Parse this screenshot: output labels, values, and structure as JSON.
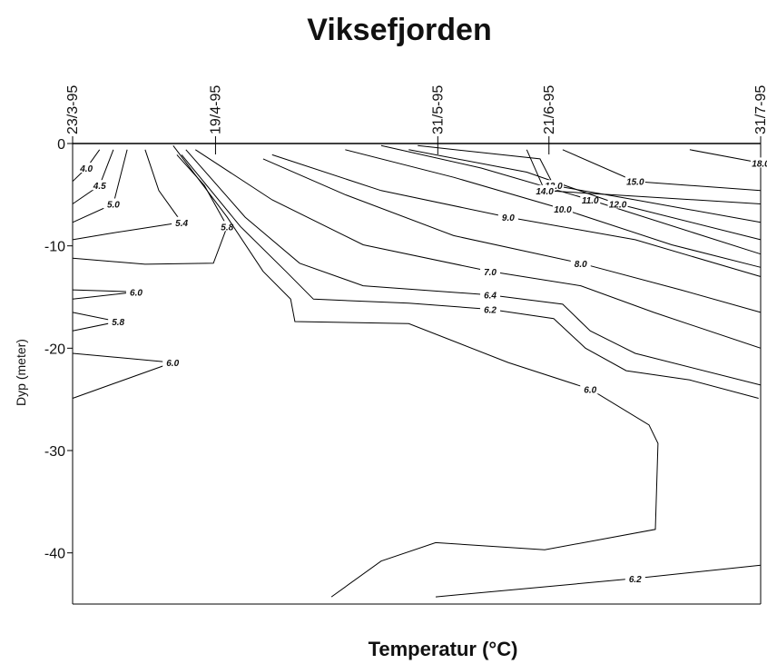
{
  "chart_data": {
    "type": "contour",
    "title": "Viksefjorden",
    "xlabel": "Temperatur (°C)",
    "ylabel": "Dyp (meter)",
    "xlim": [
      82,
      212
    ],
    "xticks": [
      {
        "value": 82,
        "label": "23/3-95"
      },
      {
        "value": 109,
        "label": "19/4-95"
      },
      {
        "value": 151,
        "label": "31/5-95"
      },
      {
        "value": 172,
        "label": "21/6-95"
      },
      {
        "value": 212,
        "label": "31/7-95"
      }
    ],
    "ylim": [
      -45,
      0
    ],
    "yticks": [
      0,
      -10,
      -20,
      -30,
      -40
    ],
    "color": "#000000",
    "contours": [
      {
        "level": 4,
        "label": "4.0",
        "x": [
          87.1,
          84.6,
          82
        ],
        "y": [
          -0.6,
          -2.4,
          -3.7
        ]
      },
      {
        "level": 4.5,
        "label": "4.5",
        "x": [
          89.7,
          87.1,
          82
        ],
        "y": [
          -0.6,
          -4.1,
          -5.9
        ]
      },
      {
        "level": 5,
        "label": "5.0",
        "x": [
          92.3,
          89.7,
          82
        ],
        "y": [
          -0.6,
          -5.9,
          -7.7
        ]
      },
      {
        "level": 5.4,
        "label": "5.4",
        "x": [
          95.7,
          98.3,
          102.6,
          88.9,
          82
        ],
        "y": [
          -0.6,
          -4.6,
          -7.7,
          -8.8,
          -9.4
        ]
      },
      {
        "level": 5.8,
        "label": "5.8",
        "x": [
          82,
          95.7,
          108.6,
          111.2,
          106.9,
          101.7
        ],
        "y": [
          -11.2,
          -11.8,
          -11.7,
          -8.1,
          -4.1,
          -1.1
        ]
      },
      {
        "level": 6,
        "label": "6.0",
        "x": [
          82,
          94,
          82
        ],
        "y": [
          -14.3,
          -14.5,
          -15.2
        ]
      },
      {
        "level": 5.8,
        "label": "5.8",
        "x": [
          82,
          90.6,
          82
        ],
        "y": [
          -16.5,
          -17.4,
          -18.3
        ]
      },
      {
        "level": 6,
        "label": "6.0",
        "x": [
          82,
          100.9,
          82
        ],
        "y": [
          -24.9,
          -21.4,
          -20.5
        ]
      },
      {
        "level": 6,
        "label": "6.0",
        "x": [
          101,
          111.2,
          118,
          123.2,
          124,
          145.5,
          164.3,
          179.8,
          190.9,
          192.6,
          192.1,
          171.2,
          150.6,
          140.3,
          130.9
        ],
        "y": [
          -0.2,
          -7.2,
          -12.5,
          -15.2,
          -17.4,
          -17.6,
          -21.4,
          -24,
          -27.5,
          -29.3,
          -37.7,
          -39.7,
          -39,
          -40.8,
          -44.3
        ]
      },
      {
        "level": 6.2,
        "label": "6.2",
        "x": [
          102.6,
          113.7,
          122.3,
          127.5,
          145.5,
          160.9,
          172.9,
          178.9,
          186.6,
          198.6,
          211.6
        ],
        "y": [
          -1.1,
          -8.1,
          -12.5,
          -15.2,
          -15.6,
          -16.2,
          -17.1,
          -20,
          -22.2,
          -23.1,
          -24.9
        ]
      },
      {
        "level": 6.4,
        "label": "6.4",
        "x": [
          103.4,
          114.6,
          124.9,
          136.9,
          160.9,
          174.6,
          179.8,
          188.3,
          212
        ],
        "y": [
          -0.6,
          -7.2,
          -11.7,
          -13.9,
          -14.8,
          -15.7,
          -18.3,
          -20.5,
          -23.6
        ]
      },
      {
        "level": 7,
        "label": "7.0",
        "x": [
          105.2,
          119.7,
          136.9,
          160.9,
          178,
          191.8,
          212
        ],
        "y": [
          -0.6,
          -5.5,
          -9.9,
          -12.5,
          -13.9,
          -16.5,
          -20
        ]
      },
      {
        "level": 8,
        "label": "8.0",
        "x": [
          118,
          133.5,
          154,
          178,
          196.9,
          212
        ],
        "y": [
          -1.5,
          -5,
          -9,
          -11.7,
          -14.3,
          -16.5
        ]
      },
      {
        "level": 9,
        "label": "9.0",
        "x": [
          119.7,
          140.3,
          164.3,
          188.3,
          212
        ],
        "y": [
          -1.1,
          -4.6,
          -7.2,
          -9.4,
          -13
        ]
      },
      {
        "level": 10,
        "label": "10.0",
        "x": [
          133.5,
          154,
          174.6,
          195.2,
          212
        ],
        "y": [
          -0.6,
          -3.3,
          -6.4,
          -9.9,
          -12.1
        ]
      },
      {
        "level": 11,
        "label": "11.0",
        "x": [
          140.3,
          159.2,
          179.8,
          212
        ],
        "y": [
          -0.2,
          -2.4,
          -5.5,
          -10.8
        ]
      },
      {
        "level": 12,
        "label": "12.0",
        "x": [
          145.5,
          167.8,
          185,
          212
        ],
        "y": [
          -0.6,
          -2.8,
          -5.9,
          -9.4
        ]
      },
      {
        "level": 13,
        "label": "13.0",
        "x": [
          147.2,
          170.3,
          172.9,
          188.3,
          212
        ],
        "y": [
          -0.2,
          -1.5,
          -4.1,
          -5.5,
          -7.7
        ]
      },
      {
        "level": 14,
        "label": "14.0",
        "x": [
          167.8,
          171.2,
          212
        ],
        "y": [
          -0.6,
          -4.6,
          -5.9
        ]
      },
      {
        "level": 15,
        "label": "15.0",
        "x": [
          174.6,
          188.3,
          212
        ],
        "y": [
          -0.6,
          -3.7,
          -4.6
        ]
      },
      {
        "level": 18,
        "label": "18.0",
        "x": [
          198.6,
          212
        ],
        "y": [
          -0.6,
          -1.9
        ]
      },
      {
        "level": 6.2,
        "label": "6.2",
        "x": [
          150.6,
          188.3,
          212
        ],
        "y": [
          -44.3,
          -42.5,
          -41.2
        ]
      }
    ]
  }
}
